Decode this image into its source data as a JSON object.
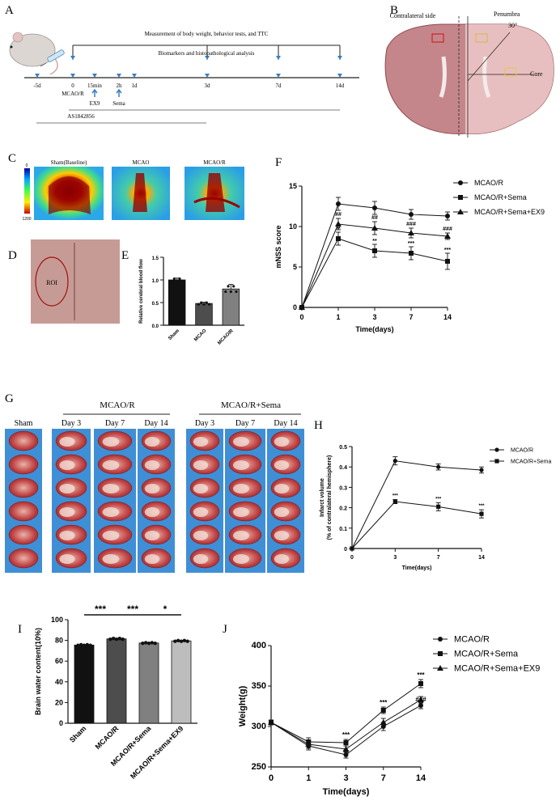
{
  "panels": {
    "A": "A",
    "B": "B",
    "C": "C",
    "D": "D",
    "E": "E",
    "F": "F",
    "G": "G",
    "H": "H",
    "I": "I",
    "J": "J"
  },
  "timeline": {
    "top_label": "Measurement of body weight, behavior tests, and TTC",
    "mid_label": "Biomarkers and histopathological analysis",
    "ticks": [
      "-5d",
      "0",
      "15min",
      "2h",
      "1d",
      "3d",
      "7d",
      "14d"
    ],
    "markers": [
      "MCAO/R",
      "EX9",
      "Sema"
    ],
    "drug_label": "AS1842856"
  },
  "brain_diagram": {
    "contralateral": "Contralateral side",
    "penumbra": "Penumbra",
    "angle": "30°",
    "core": "Core"
  },
  "ldf": {
    "scale_top": "0",
    "scale_bottom": "1200",
    "images": [
      "Sham(Baseline)",
      "MCAO",
      "MCAO/R"
    ]
  },
  "roi_label": "ROI",
  "colors": {
    "black": "#111111",
    "dark_gray": "#4d4d4d",
    "mid_gray": "#808080",
    "light_gray": "#bdbdbd",
    "brain": "#c4868a",
    "ttc_blue": "#3f8fd6"
  },
  "ttc": {
    "group1": "MCAO/R",
    "group2": "MCAO/R+Sema",
    "columns": [
      "Sham",
      "Day 3",
      "Day 7",
      "Day 14",
      "Day 3",
      "Day 7",
      "Day 14"
    ]
  },
  "chart_data": [
    {
      "id": "E",
      "type": "bar",
      "categories": [
        "Sham",
        "MCAO",
        "MCAO/R"
      ],
      "values": [
        1.0,
        0.48,
        0.8
      ],
      "errors": [
        0.04,
        0.03,
        0.1
      ],
      "ylabel": "Relative cerebral blood flow",
      "ylim": [
        0,
        1.5
      ],
      "yticks": [
        "0.0",
        "0.5",
        "1.0",
        "1.5"
      ]
    },
    {
      "id": "F",
      "type": "line",
      "x": [
        0,
        1,
        3,
        7,
        14
      ],
      "xticks": [
        "0",
        "1",
        "3",
        "7",
        "14"
      ],
      "xlabel": "Time(days)",
      "ylabel": "mNSS score",
      "ylim": [
        0,
        15
      ],
      "yticks": [
        "0",
        "5",
        "10",
        "15"
      ],
      "legend": "top-right",
      "series": [
        {
          "name": "MCAO/R",
          "values": [
            0,
            12.8,
            12.3,
            11.5,
            11.3
          ],
          "errors": [
            0,
            0.8,
            0.8,
            0.6,
            0.5
          ]
        },
        {
          "name": "MCAO/R+Sema",
          "values": [
            0,
            8.5,
            7.0,
            6.7,
            5.7
          ],
          "errors": [
            0,
            0.8,
            0.8,
            0.8,
            1.0
          ]
        },
        {
          "name": "MCAO/R+Sema+EX9",
          "values": [
            0,
            10.3,
            9.8,
            9.2,
            8.8
          ],
          "errors": [
            0,
            0.7,
            0.8,
            0.6,
            0.4
          ]
        }
      ],
      "annotations": [
        {
          "x": 1,
          "text": "##"
        },
        {
          "x": 3,
          "text": "##"
        },
        {
          "x": 7,
          "text": "###"
        },
        {
          "x": 14,
          "text": "###"
        },
        {
          "x": 1,
          "text": "**"
        },
        {
          "x": 3,
          "text": "**"
        },
        {
          "x": 7,
          "text": "***"
        },
        {
          "x": 14,
          "text": "***"
        }
      ]
    },
    {
      "id": "H",
      "type": "line",
      "x": [
        0,
        3,
        7,
        14
      ],
      "xticks": [
        "0",
        "3",
        "7",
        "14"
      ],
      "xlabel": "Time(days)",
      "ylabel_line1": "Infarct volume",
      "ylabel_line2": "(% of contralateral hemisphere)",
      "ylim": [
        0,
        0.5
      ],
      "yticks": [
        "0",
        "0.1",
        "0.2",
        "0.3",
        "0.4",
        "0.5"
      ],
      "legend": "top-right",
      "series": [
        {
          "name": "MCAO/R",
          "values": [
            0,
            0.43,
            0.4,
            0.385
          ],
          "errors": [
            0,
            0.02,
            0.015,
            0.015
          ]
        },
        {
          "name": "MCAO/R+Sema",
          "values": [
            0,
            0.23,
            0.205,
            0.17
          ],
          "errors": [
            0,
            0.01,
            0.02,
            0.02
          ]
        }
      ],
      "annotations": [
        {
          "x": 3,
          "text": "***"
        },
        {
          "x": 7,
          "text": "***"
        },
        {
          "x": 14,
          "text": "***"
        }
      ]
    },
    {
      "id": "I",
      "type": "bar",
      "categories": [
        "Sham",
        "MCAO/R",
        "MCAO/R+Sema",
        "MCAO/R+Sema+EX9"
      ],
      "values": [
        75.5,
        81.5,
        77.5,
        79.5
      ],
      "errors": [
        0.5,
        0.6,
        0.5,
        0.6
      ],
      "ylabel": "Brain water content(10%)",
      "ylim": [
        0,
        100
      ],
      "yticks": [
        "0",
        "20",
        "40",
        "60",
        "80",
        "100"
      ],
      "significance": [
        {
          "from": 0,
          "to": 1,
          "text": "***"
        },
        {
          "from": 1,
          "to": 2,
          "text": "***"
        },
        {
          "from": 2,
          "to": 3,
          "text": "*"
        }
      ]
    },
    {
      "id": "J",
      "type": "line",
      "x": [
        0,
        1,
        3,
        7,
        14
      ],
      "xticks": [
        "0",
        "1",
        "3",
        "7",
        "14"
      ],
      "xlabel": "Time(days)",
      "ylabel": "Weight(g)",
      "ylim": [
        250,
        400
      ],
      "yticks": [
        "250",
        "300",
        "350",
        "400"
      ],
      "legend": "top-right",
      "series": [
        {
          "name": "MCAO/R",
          "values": [
            305,
            276,
            265,
            300,
            326
          ],
          "errors": [
            3,
            5,
            4,
            5,
            4
          ]
        },
        {
          "name": "MCAO/R+Sema",
          "values": [
            305,
            281,
            280,
            320,
            353
          ],
          "errors": [
            3,
            5,
            4,
            4,
            5
          ]
        },
        {
          "name": "MCAO/R+Sema+EX9",
          "values": [
            305,
            278,
            272,
            305,
            333
          ],
          "errors": [
            3,
            5,
            4,
            5,
            4
          ]
        }
      ],
      "annotations": [
        {
          "x": 3,
          "text": "***"
        },
        {
          "x": 7,
          "text": "***"
        },
        {
          "x": 14,
          "text": "***"
        },
        {
          "x": 14,
          "text": "###"
        }
      ]
    }
  ]
}
